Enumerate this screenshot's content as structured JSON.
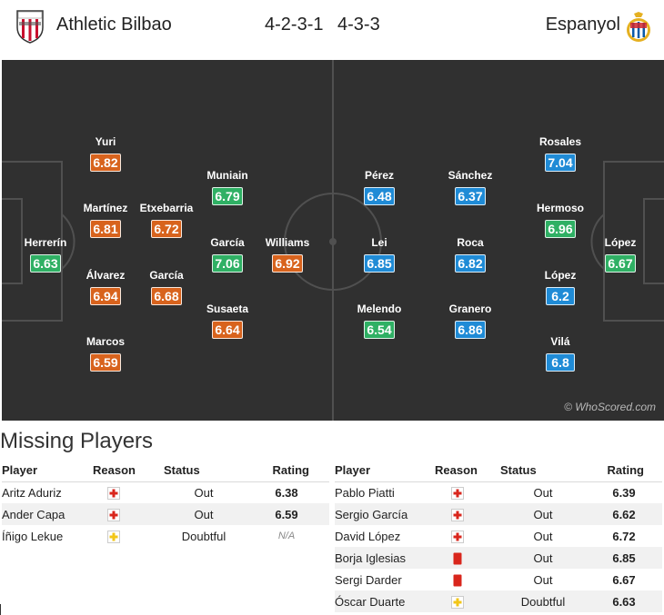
{
  "header": {
    "home_team": "Athletic Bilbao",
    "home_formation": "4-2-3-1",
    "away_formation": "4-3-3",
    "away_team": "Espanyol",
    "home_crest_icon": "athletic-bilbao-crest-icon",
    "away_crest_icon": "espanyol-crest-icon"
  },
  "colors": {
    "orange": "#d8631d",
    "green": "#2fb064",
    "blue": "#1f8bd6",
    "pitch": "#303030"
  },
  "pitch": {
    "watermark": "© WhoScored.com",
    "home_players": [
      {
        "name": "Herrerín",
        "rating": "6.63",
        "color": "green"
      },
      {
        "name": "Yuri",
        "rating": "6.82",
        "color": "orange"
      },
      {
        "name": "Martínez",
        "rating": "6.81",
        "color": "orange"
      },
      {
        "name": "Álvarez",
        "rating": "6.94",
        "color": "orange"
      },
      {
        "name": "Marcos",
        "rating": "6.59",
        "color": "orange"
      },
      {
        "name": "Etxebarria",
        "rating": "6.72",
        "color": "orange"
      },
      {
        "name": "García",
        "rating": "6.68",
        "color": "orange"
      },
      {
        "name": "Muniain",
        "rating": "6.79",
        "color": "green"
      },
      {
        "name": "García",
        "rating": "7.06",
        "color": "green"
      },
      {
        "name": "Susaeta",
        "rating": "6.64",
        "color": "orange"
      },
      {
        "name": "Williams",
        "rating": "6.92",
        "color": "orange"
      }
    ],
    "away_players": [
      {
        "name": "Pérez",
        "rating": "6.48",
        "color": "blue"
      },
      {
        "name": "Lei",
        "rating": "6.85",
        "color": "blue"
      },
      {
        "name": "Melendo",
        "rating": "6.54",
        "color": "green"
      },
      {
        "name": "Sánchez",
        "rating": "6.37",
        "color": "blue"
      },
      {
        "name": "Roca",
        "rating": "6.82",
        "color": "blue"
      },
      {
        "name": "Granero",
        "rating": "6.86",
        "color": "blue"
      },
      {
        "name": "Rosales",
        "rating": "7.04",
        "color": "blue"
      },
      {
        "name": "Hermoso",
        "rating": "6.96",
        "color": "green"
      },
      {
        "name": "López",
        "rating": "6.2",
        "color": "blue"
      },
      {
        "name": "Vilá",
        "rating": "6.8",
        "color": "blue"
      },
      {
        "name": "López",
        "rating": "6.67",
        "color": "green"
      }
    ]
  },
  "missing": {
    "title": "Missing Players",
    "columns": {
      "player": "Player",
      "reason": "Reason",
      "status": "Status",
      "rating": "Rating"
    },
    "home": [
      {
        "player": "Aritz Aduriz",
        "reason": "injury",
        "status": "Out",
        "rating": "6.38"
      },
      {
        "player": "Ander Capa",
        "reason": "injury",
        "status": "Out",
        "rating": "6.59"
      },
      {
        "player": "Íñigo Lekue",
        "reason": "doubtful-injury",
        "status": "Doubtful",
        "rating": "N/A"
      }
    ],
    "away": [
      {
        "player": "Pablo Piatti",
        "reason": "injury",
        "status": "Out",
        "rating": "6.39"
      },
      {
        "player": "Sergio García",
        "reason": "injury",
        "status": "Out",
        "rating": "6.62"
      },
      {
        "player": "David López",
        "reason": "injury",
        "status": "Out",
        "rating": "6.72"
      },
      {
        "player": "Borja Iglesias",
        "reason": "red-card",
        "status": "Out",
        "rating": "6.85"
      },
      {
        "player": "Sergi Darder",
        "reason": "red-card",
        "status": "Out",
        "rating": "6.67"
      },
      {
        "player": "Óscar Duarte",
        "reason": "doubtful-injury",
        "status": "Doubtful",
        "rating": "6.63"
      }
    ]
  }
}
